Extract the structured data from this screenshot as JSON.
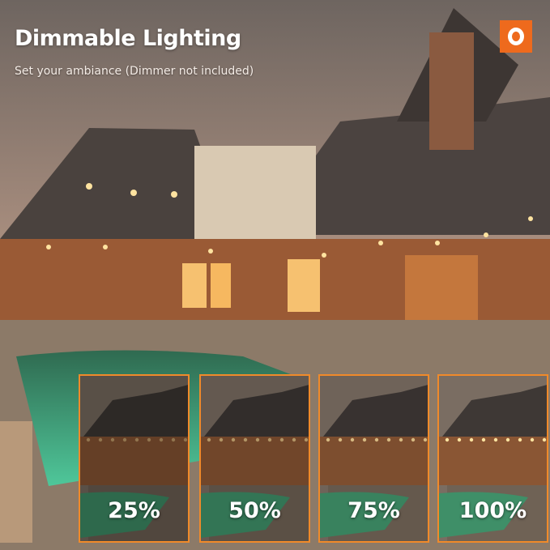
{
  "header": {
    "title": "Dimmable Lighting",
    "subtitle": "Set your ambiance (Dimmer not included)"
  },
  "brand": {
    "logo_color": "#ee6a1d"
  },
  "accent_border_color": "#f08a2a",
  "brightness_levels": [
    {
      "label": "25%",
      "level": 25
    },
    {
      "label": "50%",
      "level": 50
    },
    {
      "label": "75%",
      "level": 75
    },
    {
      "label": "100%",
      "level": 100
    }
  ]
}
